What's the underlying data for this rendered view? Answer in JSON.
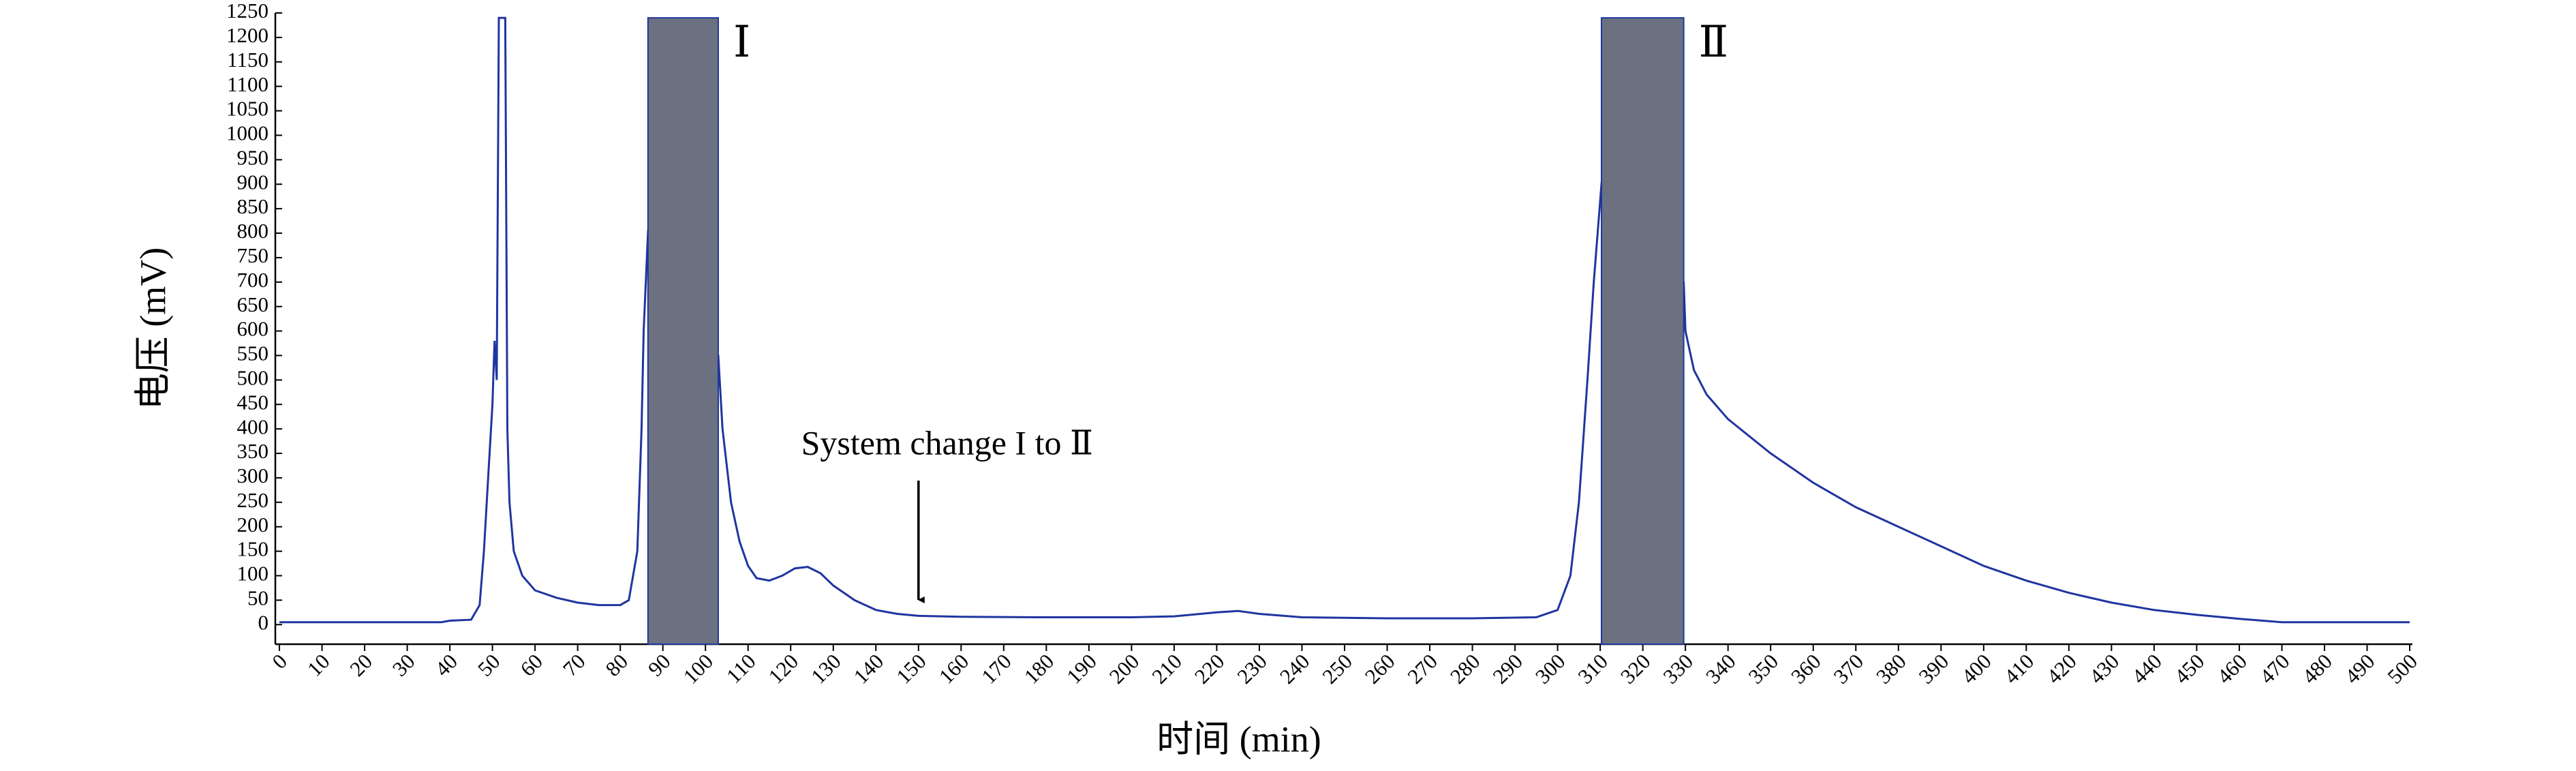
{
  "chart_data": {
    "type": "line",
    "xlabel": "时间 (min)",
    "ylabel": "电压 (mV)",
    "xlim": [
      0,
      500
    ],
    "ylim": [
      -40,
      1250
    ],
    "xticks": [
      0,
      10,
      20,
      30,
      40,
      50,
      60,
      70,
      80,
      90,
      100,
      110,
      120,
      130,
      140,
      150,
      160,
      170,
      180,
      190,
      200,
      210,
      220,
      230,
      240,
      250,
      260,
      270,
      280,
      290,
      300,
      310,
      320,
      330,
      340,
      350,
      360,
      370,
      380,
      390,
      400,
      410,
      420,
      430,
      440,
      450,
      460,
      470,
      480,
      490,
      500
    ],
    "yticks": [
      0,
      50,
      100,
      150,
      200,
      250,
      300,
      350,
      400,
      450,
      500,
      550,
      600,
      650,
      700,
      750,
      800,
      850,
      900,
      950,
      1000,
      1050,
      1100,
      1150,
      1200,
      1250
    ],
    "series": [
      {
        "color": "#1f35a0",
        "x": [
          0,
          38,
          40,
          45,
          47,
          48,
          49,
          50,
          50.5,
          51,
          51.5,
          53,
          53.5,
          54,
          55,
          57,
          60,
          65,
          70,
          75,
          80,
          82,
          84,
          85,
          85.5,
          86.5,
          103,
          104,
          106,
          108,
          110,
          112,
          115,
          118,
          121,
          124,
          127,
          130,
          135,
          140,
          145,
          150,
          160,
          180,
          200,
          210,
          220,
          225,
          230,
          240,
          260,
          280,
          295,
          300,
          303,
          305,
          307,
          308.5,
          310.3,
          329.6,
          330,
          332,
          335,
          340,
          350,
          360,
          370,
          380,
          390,
          400,
          410,
          420,
          430,
          440,
          450,
          460,
          470,
          500
        ],
        "values": [
          5,
          5,
          8,
          10,
          40,
          150,
          300,
          450,
          580,
          500,
          1240,
          1240,
          400,
          250,
          150,
          100,
          70,
          55,
          45,
          40,
          40,
          50,
          150,
          400,
          600,
          800,
          550,
          400,
          250,
          170,
          120,
          95,
          90,
          100,
          115,
          118,
          105,
          80,
          50,
          30,
          22,
          18,
          16,
          15,
          15,
          17,
          25,
          28,
          22,
          15,
          13,
          13,
          15,
          30,
          100,
          250,
          500,
          700,
          900,
          700,
          600,
          520,
          470,
          420,
          350,
          290,
          240,
          200,
          160,
          120,
          90,
          65,
          45,
          30,
          20,
          12,
          5,
          5
        ]
      }
    ],
    "fractions": [
      {
        "label": "Ⅰ",
        "start": 86.5,
        "end": 103,
        "top": 1240,
        "color": "#6b7180"
      },
      {
        "label": "Ⅱ",
        "start": 310.3,
        "end": 329.6,
        "top": 1240,
        "color": "#6b7180"
      }
    ],
    "annotation": {
      "text": "System change I to Ⅱ",
      "x": 150
    }
  }
}
